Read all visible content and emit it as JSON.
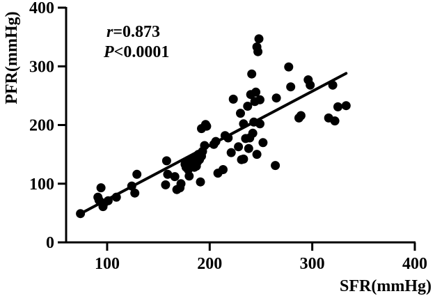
{
  "chart_data": {
    "type": "scatter",
    "title": "",
    "xlabel": "SFR(mmHg)",
    "ylabel": "PFR(mmHg)",
    "xlim": [
      60,
      400
    ],
    "ylim": [
      0,
      400
    ],
    "x_ticks": [
      100,
      200,
      300,
      400
    ],
    "y_ticks": [
      0,
      100,
      200,
      300,
      400
    ],
    "x_tick_labels": [
      "100",
      "200",
      "300",
      "400"
    ],
    "y_tick_labels": [
      "0",
      "100",
      "200",
      "300",
      "400"
    ],
    "grid": false,
    "annotation": {
      "r_symbol": "r",
      "r_rest": "=0.873",
      "p_symbol": "P",
      "p_rest": "<0.0001"
    },
    "regression_line": {
      "x": [
        73,
        333
      ],
      "y": [
        48,
        288
      ]
    },
    "points": [
      {
        "x": 74,
        "y": 49
      },
      {
        "x": 91,
        "y": 77
      },
      {
        "x": 92,
        "y": 72
      },
      {
        "x": 94,
        "y": 93
      },
      {
        "x": 96,
        "y": 61
      },
      {
        "x": 97,
        "y": 67
      },
      {
        "x": 101,
        "y": 71
      },
      {
        "x": 109,
        "y": 77
      },
      {
        "x": 124,
        "y": 96
      },
      {
        "x": 127,
        "y": 84
      },
      {
        "x": 129,
        "y": 116
      },
      {
        "x": 157,
        "y": 98
      },
      {
        "x": 158,
        "y": 139
      },
      {
        "x": 159,
        "y": 116
      },
      {
        "x": 166,
        "y": 112
      },
      {
        "x": 168,
        "y": 90
      },
      {
        "x": 171,
        "y": 93
      },
      {
        "x": 172,
        "y": 100
      },
      {
        "x": 176,
        "y": 133
      },
      {
        "x": 177,
        "y": 128
      },
      {
        "x": 178,
        "y": 138
      },
      {
        "x": 179,
        "y": 124
      },
      {
        "x": 180,
        "y": 113
      },
      {
        "x": 182,
        "y": 132
      },
      {
        "x": 184,
        "y": 141
      },
      {
        "x": 185,
        "y": 128
      },
      {
        "x": 186,
        "y": 137
      },
      {
        "x": 187,
        "y": 130
      },
      {
        "x": 188,
        "y": 137
      },
      {
        "x": 189,
        "y": 150
      },
      {
        "x": 190,
        "y": 141
      },
      {
        "x": 191,
        "y": 103
      },
      {
        "x": 192,
        "y": 147
      },
      {
        "x": 193,
        "y": 155
      },
      {
        "x": 192,
        "y": 194
      },
      {
        "x": 195,
        "y": 165
      },
      {
        "x": 196,
        "y": 201
      },
      {
        "x": 197,
        "y": 198
      },
      {
        "x": 204,
        "y": 167
      },
      {
        "x": 206,
        "y": 172
      },
      {
        "x": 208,
        "y": 118
      },
      {
        "x": 213,
        "y": 124
      },
      {
        "x": 215,
        "y": 182
      },
      {
        "x": 218,
        "y": 178
      },
      {
        "x": 221,
        "y": 153
      },
      {
        "x": 223,
        "y": 244
      },
      {
        "x": 228,
        "y": 163
      },
      {
        "x": 230,
        "y": 220
      },
      {
        "x": 231,
        "y": 141
      },
      {
        "x": 233,
        "y": 142
      },
      {
        "x": 233,
        "y": 202
      },
      {
        "x": 235,
        "y": 177
      },
      {
        "x": 237,
        "y": 232
      },
      {
        "x": 238,
        "y": 160
      },
      {
        "x": 239,
        "y": 178
      },
      {
        "x": 240,
        "y": 252
      },
      {
        "x": 241,
        "y": 287
      },
      {
        "x": 242,
        "y": 186
      },
      {
        "x": 243,
        "y": 205
      },
      {
        "x": 244,
        "y": 240
      },
      {
        "x": 245,
        "y": 256
      },
      {
        "x": 246,
        "y": 150
      },
      {
        "x": 246,
        "y": 333
      },
      {
        "x": 247,
        "y": 325
      },
      {
        "x": 248,
        "y": 347
      },
      {
        "x": 249,
        "y": 243
      },
      {
        "x": 249,
        "y": 202
      },
      {
        "x": 252,
        "y": 170
      },
      {
        "x": 264,
        "y": 131
      },
      {
        "x": 265,
        "y": 246
      },
      {
        "x": 277,
        "y": 299
      },
      {
        "x": 279,
        "y": 265
      },
      {
        "x": 287,
        "y": 212
      },
      {
        "x": 289,
        "y": 216
      },
      {
        "x": 296,
        "y": 277
      },
      {
        "x": 298,
        "y": 268
      },
      {
        "x": 316,
        "y": 212
      },
      {
        "x": 320,
        "y": 268
      },
      {
        "x": 322,
        "y": 207
      },
      {
        "x": 325,
        "y": 231
      },
      {
        "x": 333,
        "y": 233
      }
    ]
  }
}
